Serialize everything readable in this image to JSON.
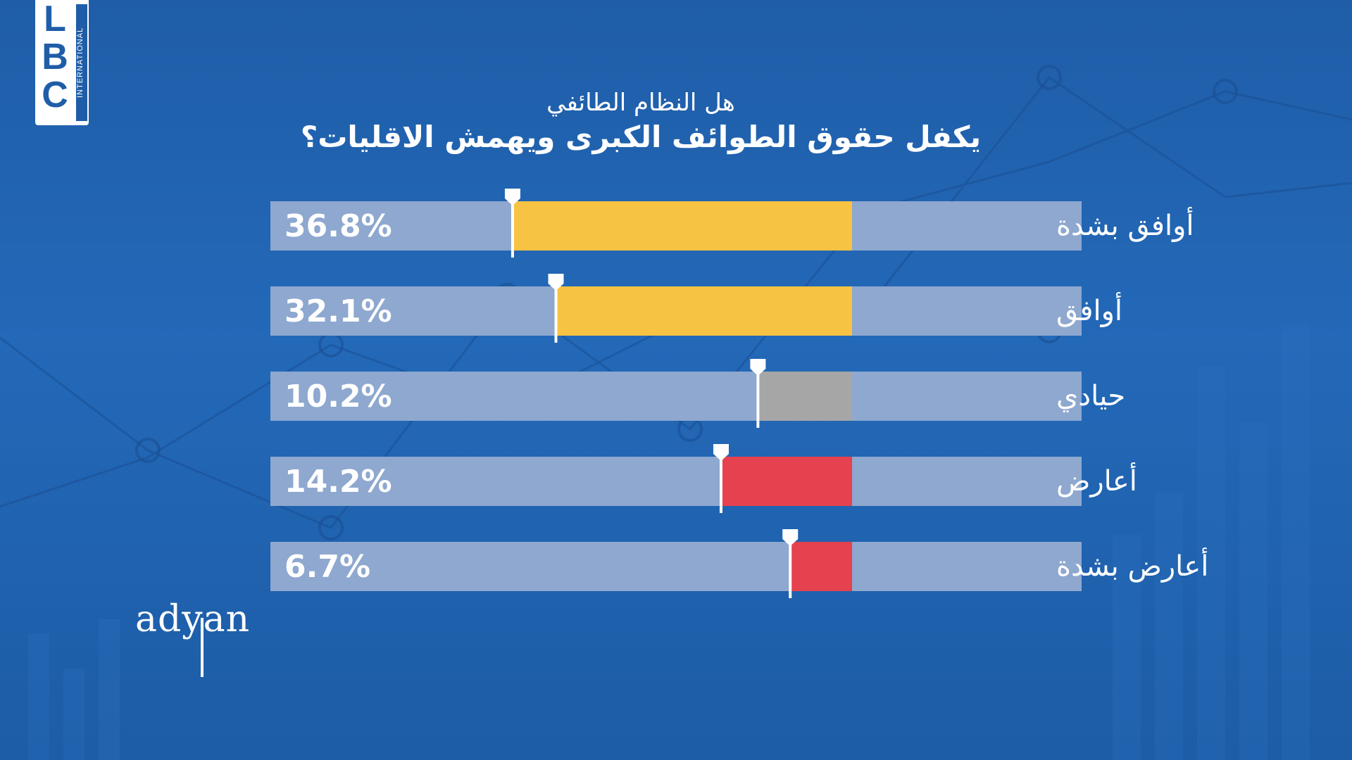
{
  "logo": {
    "letters": [
      "L",
      "B",
      "C"
    ],
    "subtitle": "INTERNATIONAL"
  },
  "brand": "adyan",
  "colors": {
    "track": "#8ea8cf",
    "agree": "#f7c342",
    "neutral": "#a6a6a6",
    "disagree": "#e6414f",
    "text": "#ffffff",
    "background": "#2165b4"
  },
  "chart_data": {
    "type": "bar",
    "title_line1": "هل النظام الطائفي",
    "title_line2": "يكفل حقوق الطوائف الكبرى ويهمش الاقليات؟",
    "categories": [
      "أوافق بشدة",
      "أوافق",
      "حيادي",
      "أعارض",
      "أعارض بشدة"
    ],
    "values": [
      36.8,
      32.1,
      10.2,
      14.2,
      6.7
    ],
    "value_labels": [
      "36.8%",
      "32.1%",
      "10.2%",
      "14.2%",
      "6.7%"
    ],
    "bar_colors": [
      "#f7c342",
      "#f7c342",
      "#a6a6a6",
      "#e6414f",
      "#e6414f"
    ],
    "unit": "%",
    "orientation": "horizontal",
    "xlim": [
      0,
      100
    ]
  }
}
